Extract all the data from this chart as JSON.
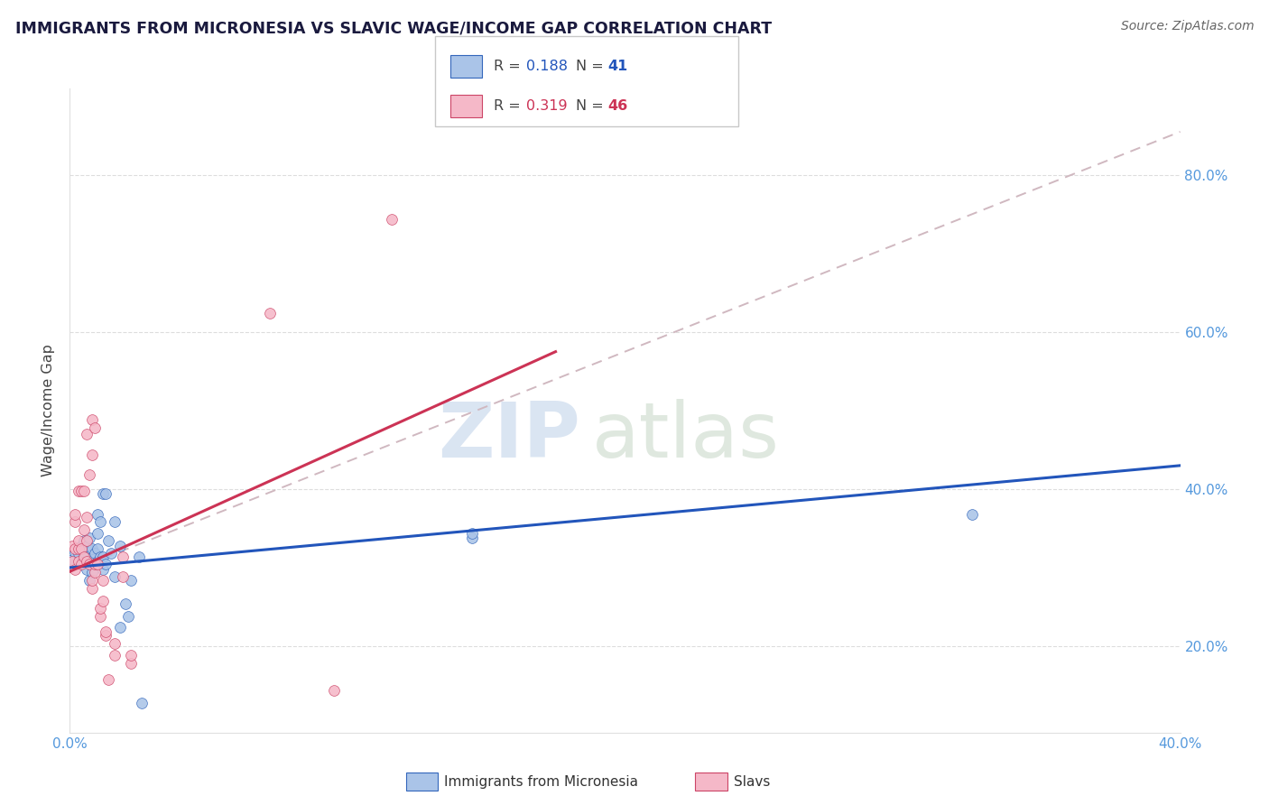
{
  "title": "IMMIGRANTS FROM MICRONESIA VS SLAVIC WAGE/INCOME GAP CORRELATION CHART",
  "source": "Source: ZipAtlas.com",
  "ylabel": "Wage/Income Gap",
  "xlim": [
    0.0,
    0.4
  ],
  "ylim": [
    0.09,
    0.91
  ],
  "yticks": [
    0.2,
    0.4,
    0.6,
    0.8
  ],
  "ytick_labels": [
    "20.0%",
    "40.0%",
    "60.0%",
    "80.0%"
  ],
  "xtick_positions": [
    0.0,
    0.08,
    0.16,
    0.24,
    0.32,
    0.4
  ],
  "xtick_labels": [
    "0.0%",
    "",
    "",
    "",
    "",
    "40.0%"
  ],
  "legend_blue_r": "0.188",
  "legend_blue_n": "41",
  "legend_pink_r": "0.319",
  "legend_pink_n": "46",
  "blue_fill": "#aac4e8",
  "pink_fill": "#f5b8c8",
  "blue_edge": "#3366bb",
  "pink_edge": "#cc4466",
  "blue_line": "#2255bb",
  "pink_line": "#cc3355",
  "dash_line_color": "#d0b8c0",
  "tick_color": "#5599dd",
  "watermark_zip": "ZIP",
  "watermark_atlas": "atlas",
  "blue_scatter": [
    [
      0.001,
      0.31
    ],
    [
      0.002,
      0.32
    ],
    [
      0.003,
      0.318
    ],
    [
      0.004,
      0.328
    ],
    [
      0.005,
      0.314
    ],
    [
      0.005,
      0.334
    ],
    [
      0.006,
      0.298
    ],
    [
      0.006,
      0.328
    ],
    [
      0.007,
      0.284
    ],
    [
      0.007,
      0.308
    ],
    [
      0.007,
      0.338
    ],
    [
      0.008,
      0.294
    ],
    [
      0.008,
      0.314
    ],
    [
      0.008,
      0.324
    ],
    [
      0.009,
      0.304
    ],
    [
      0.009,
      0.318
    ],
    [
      0.01,
      0.308
    ],
    [
      0.01,
      0.324
    ],
    [
      0.01,
      0.344
    ],
    [
      0.01,
      0.368
    ],
    [
      0.011,
      0.314
    ],
    [
      0.011,
      0.358
    ],
    [
      0.012,
      0.298
    ],
    [
      0.012,
      0.314
    ],
    [
      0.012,
      0.394
    ],
    [
      0.013,
      0.304
    ],
    [
      0.013,
      0.394
    ],
    [
      0.014,
      0.334
    ],
    [
      0.015,
      0.318
    ],
    [
      0.016,
      0.288
    ],
    [
      0.016,
      0.358
    ],
    [
      0.018,
      0.224
    ],
    [
      0.018,
      0.328
    ],
    [
      0.02,
      0.254
    ],
    [
      0.021,
      0.238
    ],
    [
      0.022,
      0.284
    ],
    [
      0.025,
      0.314
    ],
    [
      0.026,
      0.128
    ],
    [
      0.145,
      0.338
    ],
    [
      0.145,
      0.344
    ],
    [
      0.325,
      0.368
    ]
  ],
  "pink_scatter": [
    [
      0.001,
      0.308
    ],
    [
      0.001,
      0.328
    ],
    [
      0.002,
      0.298
    ],
    [
      0.002,
      0.324
    ],
    [
      0.002,
      0.358
    ],
    [
      0.002,
      0.368
    ],
    [
      0.003,
      0.308
    ],
    [
      0.003,
      0.324
    ],
    [
      0.003,
      0.334
    ],
    [
      0.003,
      0.398
    ],
    [
      0.004,
      0.304
    ],
    [
      0.004,
      0.324
    ],
    [
      0.004,
      0.398
    ],
    [
      0.005,
      0.314
    ],
    [
      0.005,
      0.348
    ],
    [
      0.005,
      0.398
    ],
    [
      0.006,
      0.308
    ],
    [
      0.006,
      0.334
    ],
    [
      0.006,
      0.364
    ],
    [
      0.006,
      0.47
    ],
    [
      0.007,
      0.304
    ],
    [
      0.007,
      0.418
    ],
    [
      0.008,
      0.274
    ],
    [
      0.008,
      0.284
    ],
    [
      0.008,
      0.444
    ],
    [
      0.008,
      0.488
    ],
    [
      0.009,
      0.294
    ],
    [
      0.009,
      0.304
    ],
    [
      0.009,
      0.478
    ],
    [
      0.01,
      0.304
    ],
    [
      0.011,
      0.238
    ],
    [
      0.011,
      0.248
    ],
    [
      0.012,
      0.258
    ],
    [
      0.012,
      0.284
    ],
    [
      0.013,
      0.214
    ],
    [
      0.013,
      0.218
    ],
    [
      0.014,
      0.158
    ],
    [
      0.016,
      0.188
    ],
    [
      0.016,
      0.204
    ],
    [
      0.019,
      0.288
    ],
    [
      0.019,
      0.314
    ],
    [
      0.022,
      0.178
    ],
    [
      0.022,
      0.188
    ],
    [
      0.072,
      0.624
    ],
    [
      0.095,
      0.144
    ],
    [
      0.116,
      0.744
    ]
  ],
  "blue_trend_x": [
    0.0,
    0.4
  ],
  "blue_trend_y": [
    0.3,
    0.43
  ],
  "pink_trend_x": [
    0.0,
    0.175
  ],
  "pink_trend_y": [
    0.295,
    0.575
  ],
  "dash_trend_x": [
    0.0,
    0.4
  ],
  "dash_trend_y": [
    0.295,
    0.855
  ]
}
